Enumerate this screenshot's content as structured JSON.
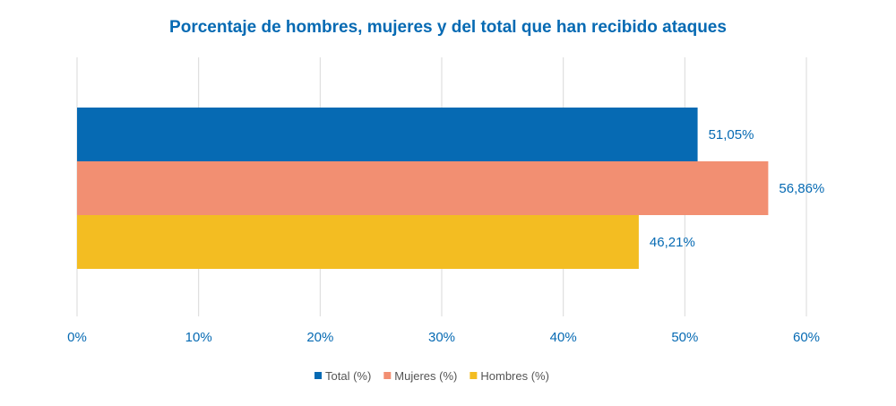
{
  "chart_data": {
    "type": "bar",
    "orientation": "horizontal",
    "title": "Porcentaje de hombres, mujeres y del total que han recibido ataques",
    "xlim": [
      0,
      60
    ],
    "x_ticks": [
      0,
      10,
      20,
      30,
      40,
      50,
      60
    ],
    "x_tick_labels": [
      "0%",
      "10%",
      "20%",
      "30%",
      "40%",
      "50%",
      "60%"
    ],
    "grid": "vertical",
    "legend_position": "bottom",
    "series": [
      {
        "name": "Total (%)",
        "value": 51.05,
        "label": "51,05%",
        "color": "#066ab3"
      },
      {
        "name": "Mujeres (%)",
        "value": 56.86,
        "label": "56,86%",
        "color": "#f28f72"
      },
      {
        "name": "Hombres (%)",
        "value": 46.21,
        "label": "46,21%",
        "color": "#f3bd22"
      }
    ]
  },
  "colors": {
    "title": "#066ab3",
    "text": "#066ab3",
    "legend_text": "#555555",
    "grid": "#d9d9d9"
  }
}
